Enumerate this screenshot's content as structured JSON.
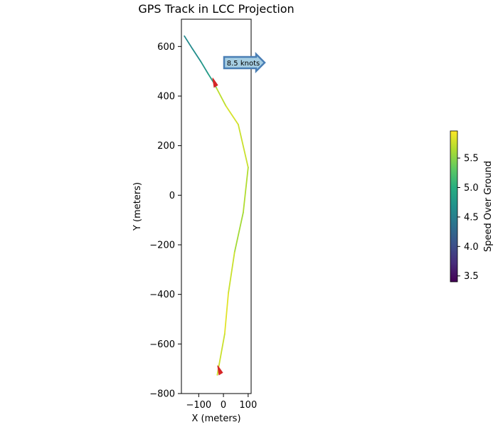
{
  "chart_data": {
    "type": "line",
    "title": "GPS Track in LCC Projection",
    "xlabel": "X (meters)",
    "ylabel": "Y (meters)",
    "xlim": [
      -170,
      112
    ],
    "ylim": [
      -800,
      710
    ],
    "x_ticks": [
      -100,
      0,
      100
    ],
    "x_tick_labels": [
      "−100",
      "0",
      "100"
    ],
    "y_ticks": [
      -800,
      -600,
      -400,
      -200,
      0,
      200,
      400,
      600
    ],
    "y_tick_labels": [
      "−800",
      "−600",
      "−400",
      "−200",
      "0",
      "200",
      "400",
      "600"
    ],
    "grid": false,
    "series": [
      {
        "color_by": "speed_over_ground",
        "points": [
          {
            "x": -158,
            "y": 642,
            "speed": 4.6
          },
          {
            "x": -125,
            "y": 590,
            "speed": 4.6
          },
          {
            "x": -92,
            "y": 540,
            "speed": 4.7
          },
          {
            "x": -62,
            "y": 490,
            "speed": 4.8
          },
          {
            "x": -40,
            "y": 455,
            "speed": 4.9
          },
          {
            "x": -28,
            "y": 432,
            "speed": 5.6
          },
          {
            "x": 10,
            "y": 360,
            "speed": 5.8
          },
          {
            "x": 60,
            "y": 285,
            "speed": 5.8
          },
          {
            "x": 100,
            "y": 112,
            "speed": 5.7
          },
          {
            "x": 80,
            "y": -70,
            "speed": 5.6
          },
          {
            "x": 45,
            "y": -230,
            "speed": 5.6
          },
          {
            "x": 20,
            "y": -395,
            "speed": 5.9
          },
          {
            "x": 5,
            "y": -560,
            "speed": 5.8
          },
          {
            "x": -25,
            "y": -725,
            "speed": 5.7
          }
        ]
      }
    ],
    "markers": [
      {
        "name": "heading-marker",
        "x": -35,
        "y": 450,
        "color": "#d62728"
      },
      {
        "name": "heading-marker",
        "x": -15,
        "y": -710,
        "color": "#d62728"
      }
    ],
    "annotation": {
      "text": "8.5 knots",
      "x": 0,
      "y": 530,
      "box_fill": "#a6cee3",
      "box_edge": "#4a7fb5"
    },
    "colorbar": {
      "label": "Speed Over Ground",
      "colormap": "viridis",
      "range": [
        3.4,
        5.96
      ],
      "ticks": [
        3.5,
        4.0,
        4.5,
        5.0,
        5.5
      ],
      "tick_labels": [
        "3.5",
        "4.0",
        "4.5",
        "5.0",
        "5.5"
      ]
    }
  }
}
